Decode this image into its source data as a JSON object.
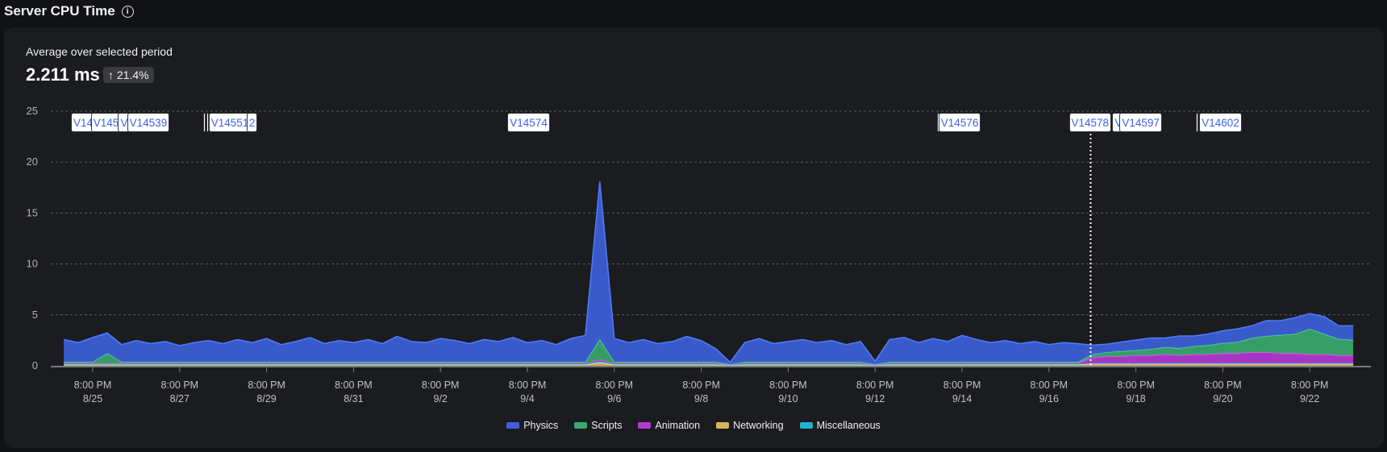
{
  "header": {
    "title": "Server CPU Time",
    "info_icon": "info-icon"
  },
  "summary": {
    "label": "Average over selected period",
    "value": "2.211 ms",
    "change": "21.4%",
    "change_direction": "up"
  },
  "chart_data": {
    "type": "area",
    "stacked": true,
    "x_start": "8/25 04:00",
    "x_step_hours": 8,
    "ylim": [
      0,
      25
    ],
    "yticks": [
      "0",
      "5",
      "10",
      "15",
      "20",
      "25"
    ],
    "xticks": [
      {
        "time": "8:00 PM",
        "date": "8/25"
      },
      {
        "time": "8:00 PM",
        "date": "8/27"
      },
      {
        "time": "8:00 PM",
        "date": "8/29"
      },
      {
        "time": "8:00 PM",
        "date": "8/31"
      },
      {
        "time": "8:00 PM",
        "date": "9/2"
      },
      {
        "time": "8:00 PM",
        "date": "9/4"
      },
      {
        "time": "8:00 PM",
        "date": "9/6"
      },
      {
        "time": "8:00 PM",
        "date": "9/8"
      },
      {
        "time": "8:00 PM",
        "date": "9/10"
      },
      {
        "time": "8:00 PM",
        "date": "9/12"
      },
      {
        "time": "8:00 PM",
        "date": "9/14"
      },
      {
        "time": "8:00 PM",
        "date": "9/16"
      },
      {
        "time": "8:00 PM",
        "date": "9/18"
      },
      {
        "time": "8:00 PM",
        "date": "9/20"
      },
      {
        "time": "8:00 PM",
        "date": "9/22"
      }
    ],
    "grid": true,
    "legend_position": "bottom",
    "cursor": "9/17 19:00",
    "series": [
      {
        "name": "Miscellaneous",
        "color": "#1fb3d1",
        "values": [
          0.03,
          0.03,
          0.03,
          0.03,
          0.03,
          0.03,
          0.03,
          0.03,
          0.03,
          0.03,
          0.03,
          0.03,
          0.03,
          0.03,
          0.03,
          0.03,
          0.03,
          0.03,
          0.03,
          0.03,
          0.03,
          0.03,
          0.03,
          0.03,
          0.03,
          0.03,
          0.03,
          0.03,
          0.03,
          0.03,
          0.03,
          0.03,
          0.03,
          0.03,
          0.03,
          0.03,
          0.03,
          0.1,
          0.03,
          0.03,
          0.03,
          0.03,
          0.03,
          0.03,
          0.03,
          0.03,
          0.03,
          0.03,
          0.03,
          0.03,
          0.03,
          0.03,
          0.03,
          0.03,
          0.03,
          0.03,
          0.03,
          0.03,
          0.03,
          0.03,
          0.03,
          0.03,
          0.03,
          0.03,
          0.03,
          0.03,
          0.03,
          0.03,
          0.03,
          0.03,
          0.03,
          0.03,
          0.03,
          0.03,
          0.03,
          0.03,
          0.03,
          0.03,
          0.03,
          0.03,
          0.03,
          0.03,
          0.03,
          0.03,
          0.03,
          0.03,
          0.03,
          0.03,
          0.03,
          0.03
        ]
      },
      {
        "name": "Networking",
        "color": "#d9b45a",
        "values": [
          0.12,
          0.12,
          0.12,
          0.12,
          0.12,
          0.12,
          0.12,
          0.12,
          0.12,
          0.12,
          0.12,
          0.12,
          0.12,
          0.12,
          0.12,
          0.12,
          0.12,
          0.12,
          0.12,
          0.12,
          0.12,
          0.12,
          0.12,
          0.12,
          0.12,
          0.12,
          0.12,
          0.12,
          0.12,
          0.12,
          0.12,
          0.12,
          0.12,
          0.12,
          0.12,
          0.12,
          0.12,
          0.3,
          0.12,
          0.12,
          0.12,
          0.12,
          0.12,
          0.12,
          0.12,
          0.12,
          0.05,
          0.12,
          0.12,
          0.12,
          0.12,
          0.12,
          0.12,
          0.12,
          0.12,
          0.12,
          0.05,
          0.12,
          0.12,
          0.12,
          0.12,
          0.12,
          0.12,
          0.12,
          0.12,
          0.12,
          0.12,
          0.12,
          0.12,
          0.12,
          0.12,
          0.2,
          0.2,
          0.2,
          0.2,
          0.2,
          0.2,
          0.2,
          0.2,
          0.2,
          0.2,
          0.2,
          0.2,
          0.2,
          0.2,
          0.2,
          0.2,
          0.2,
          0.2,
          0.2
        ]
      },
      {
        "name": "Animation",
        "color": "#b33ad1",
        "values": [
          0.08,
          0.08,
          0.08,
          0.08,
          0.08,
          0.08,
          0.08,
          0.08,
          0.08,
          0.08,
          0.08,
          0.08,
          0.08,
          0.08,
          0.08,
          0.08,
          0.08,
          0.08,
          0.08,
          0.08,
          0.08,
          0.08,
          0.08,
          0.08,
          0.08,
          0.08,
          0.08,
          0.08,
          0.08,
          0.08,
          0.08,
          0.08,
          0.08,
          0.08,
          0.08,
          0.08,
          0.08,
          0.2,
          0.08,
          0.08,
          0.08,
          0.08,
          0.08,
          0.08,
          0.08,
          0.08,
          0.02,
          0.08,
          0.08,
          0.08,
          0.08,
          0.08,
          0.08,
          0.08,
          0.08,
          0.08,
          0.02,
          0.08,
          0.08,
          0.08,
          0.08,
          0.08,
          0.08,
          0.08,
          0.08,
          0.08,
          0.08,
          0.08,
          0.08,
          0.08,
          0.08,
          0.6,
          0.7,
          0.7,
          0.8,
          0.8,
          0.9,
          0.8,
          0.9,
          0.9,
          1.0,
          1.0,
          1.1,
          1.1,
          1.0,
          1.0,
          0.9,
          0.9,
          0.8,
          0.8
        ]
      },
      {
        "name": "Scripts",
        "color": "#3aa86d",
        "values": [
          0.15,
          0.15,
          0.15,
          1.0,
          0.15,
          0.15,
          0.15,
          0.15,
          0.15,
          0.15,
          0.15,
          0.15,
          0.15,
          0.15,
          0.15,
          0.15,
          0.15,
          0.15,
          0.15,
          0.15,
          0.15,
          0.15,
          0.15,
          0.15,
          0.15,
          0.15,
          0.15,
          0.15,
          0.15,
          0.15,
          0.15,
          0.15,
          0.15,
          0.15,
          0.15,
          0.15,
          0.15,
          2.0,
          0.15,
          0.15,
          0.15,
          0.15,
          0.15,
          0.15,
          0.15,
          0.15,
          0.05,
          0.15,
          0.15,
          0.15,
          0.15,
          0.15,
          0.15,
          0.15,
          0.15,
          0.15,
          0.05,
          0.15,
          0.15,
          0.15,
          0.15,
          0.15,
          0.15,
          0.15,
          0.15,
          0.15,
          0.15,
          0.15,
          0.15,
          0.15,
          0.15,
          0.3,
          0.4,
          0.5,
          0.5,
          0.6,
          0.7,
          0.7,
          0.8,
          0.9,
          1.0,
          1.1,
          1.4,
          1.6,
          1.8,
          1.9,
          2.5,
          2.0,
          1.6,
          1.5
        ]
      },
      {
        "name": "Physics",
        "color": "#3d5fd9",
        "values": [
          2.2,
          1.9,
          2.4,
          2.0,
          1.7,
          2.1,
          1.8,
          2.0,
          1.6,
          1.9,
          2.1,
          1.8,
          2.2,
          1.9,
          2.3,
          1.7,
          2.0,
          2.4,
          1.8,
          2.1,
          1.9,
          2.2,
          1.8,
          2.5,
          2.0,
          1.9,
          2.3,
          2.1,
          1.8,
          2.2,
          2.0,
          2.4,
          1.9,
          2.1,
          1.7,
          2.3,
          2.6,
          15.5,
          2.3,
          1.9,
          2.2,
          1.8,
          2.0,
          2.5,
          2.1,
          1.3,
          0.2,
          1.9,
          2.3,
          1.8,
          2.0,
          2.2,
          1.9,
          2.1,
          1.7,
          2.0,
          0.3,
          2.2,
          2.4,
          1.9,
          2.3,
          2.0,
          2.6,
          2.2,
          1.9,
          2.1,
          1.8,
          2.0,
          1.7,
          1.9,
          1.8,
          0.9,
          0.8,
          0.9,
          1.0,
          1.1,
          0.9,
          1.2,
          1.0,
          1.1,
          1.2,
          1.3,
          1.2,
          1.5,
          1.4,
          1.6,
          1.5,
          1.7,
          1.3,
          1.4
        ]
      }
    ],
    "legend": [
      "Physics",
      "Scripts",
      "Animation",
      "Networking",
      "Miscellaneous"
    ],
    "annotations": [
      {
        "label": "V14",
        "time": "8/25 08:00"
      },
      {
        "label": "V145",
        "time": "8/25 19:00"
      },
      {
        "label": "V",
        "time": "8/26 10:00"
      },
      {
        "label": "V14539",
        "time": "8/26 15:00"
      },
      {
        "label": "",
        "time": "8/28 09:00"
      },
      {
        "label": "",
        "time": "8/28 11:00"
      },
      {
        "label": "V14551",
        "time": "8/28 12:00"
      },
      {
        "label": "2",
        "time": "8/29 09:00"
      },
      {
        "label": "V14574",
        "time": "9/4 09:00"
      },
      {
        "label": "",
        "time": "9/14 06:00"
      },
      {
        "label": "V14576",
        "time": "9/14 07:00"
      },
      {
        "label": "V14578",
        "time": "9/17 07:00"
      },
      {
        "label": "V",
        "time": "9/18 07:00"
      },
      {
        "label": "V14597",
        "time": "9/18 11:00"
      },
      {
        "label": "",
        "time": "9/20 05:00"
      },
      {
        "label": "V14602",
        "time": "9/20 07:00"
      }
    ]
  }
}
